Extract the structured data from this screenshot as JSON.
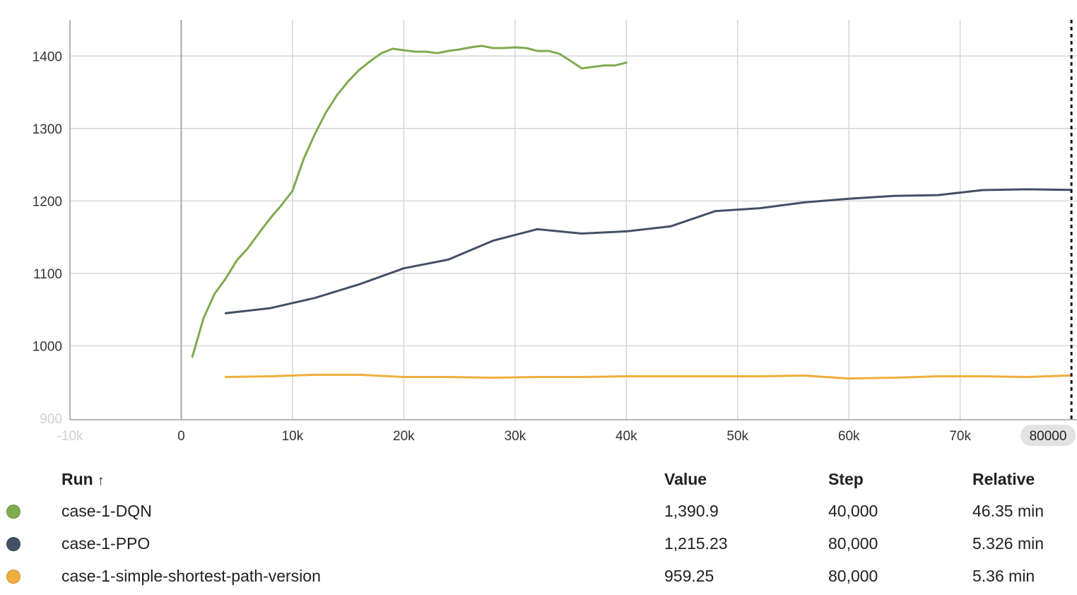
{
  "chart_data": {
    "type": "line",
    "xlim": [
      -10000,
      80500
    ],
    "ylim": [
      898,
      1450
    ],
    "x_ticks": [
      "-10k",
      "0",
      "10k",
      "20k",
      "30k",
      "40k",
      "50k",
      "60k",
      "70k"
    ],
    "x_tick_values": [
      -10000,
      0,
      10000,
      20000,
      30000,
      40000,
      50000,
      60000,
      70000
    ],
    "y_ticks": [
      "900",
      "1000",
      "1100",
      "1200",
      "1300",
      "1400"
    ],
    "y_tick_values": [
      900,
      1000,
      1100,
      1200,
      1300,
      1400
    ],
    "grid": true,
    "cursor": {
      "x": 80000,
      "label": "80000"
    },
    "series": [
      {
        "name": "case-1-DQN",
        "color": "#7fab4f",
        "x": [
          1000,
          2000,
          3000,
          4000,
          5000,
          6000,
          7000,
          8000,
          9000,
          10000,
          11000,
          12000,
          13000,
          14000,
          15000,
          16000,
          17000,
          18000,
          19000,
          20000,
          21000,
          22000,
          23000,
          24000,
          25000,
          26000,
          27000,
          28000,
          29000,
          30000,
          31000,
          32000,
          33000,
          34000,
          35000,
          36000,
          37000,
          38000,
          39000,
          40000
        ],
        "y": [
          985,
          1038,
          1072,
          1093,
          1118,
          1135,
          1156,
          1176,
          1194,
          1214,
          1258,
          1292,
          1322,
          1346,
          1365,
          1381,
          1393,
          1404,
          1410,
          1408,
          1406,
          1406,
          1404,
          1407,
          1409,
          1412,
          1414,
          1411,
          1411,
          1412,
          1411,
          1407,
          1407,
          1403,
          1393,
          1383,
          1385,
          1387,
          1387,
          1390.9
        ]
      },
      {
        "name": "case-1-PPO",
        "color": "#425066",
        "x": [
          4000,
          8000,
          12000,
          16000,
          20000,
          24000,
          28000,
          32000,
          36000,
          40000,
          44000,
          48000,
          52000,
          56000,
          60000,
          64000,
          68000,
          72000,
          76000,
          80000
        ],
        "y": [
          1045,
          1052,
          1066,
          1085,
          1107,
          1119,
          1145,
          1161,
          1155,
          1158,
          1165,
          1186,
          1190,
          1198,
          1203,
          1207,
          1208,
          1215,
          1216,
          1215.23
        ]
      },
      {
        "name": "case-1-simple-shortest-path-version",
        "color": "#f0ae3c",
        "x": [
          4000,
          8000,
          12000,
          16000,
          20000,
          24000,
          28000,
          32000,
          36000,
          40000,
          44000,
          48000,
          52000,
          56000,
          60000,
          64000,
          68000,
          72000,
          76000,
          80000
        ],
        "y": [
          957,
          958,
          960,
          960,
          957,
          957,
          956,
          957,
          957,
          958,
          958,
          958,
          958,
          959,
          955,
          956,
          958,
          958,
          957,
          959.25
        ]
      }
    ]
  },
  "table": {
    "headers": {
      "run": "Run",
      "sort_arrow": "↑",
      "value": "Value",
      "step": "Step",
      "relative": "Relative"
    },
    "rows": [
      {
        "color": "#7fab4f",
        "run": "case-1-DQN",
        "value": "1,390.9",
        "step": "40,000",
        "relative": "46.35 min"
      },
      {
        "color": "#425066",
        "run": "case-1-PPO",
        "value": "1,215.23",
        "step": "80,000",
        "relative": "5.326 min"
      },
      {
        "color": "#f0ae3c",
        "run": "case-1-simple-shortest-path-version",
        "value": "959.25",
        "step": "80,000",
        "relative": "5.36 min"
      }
    ]
  }
}
